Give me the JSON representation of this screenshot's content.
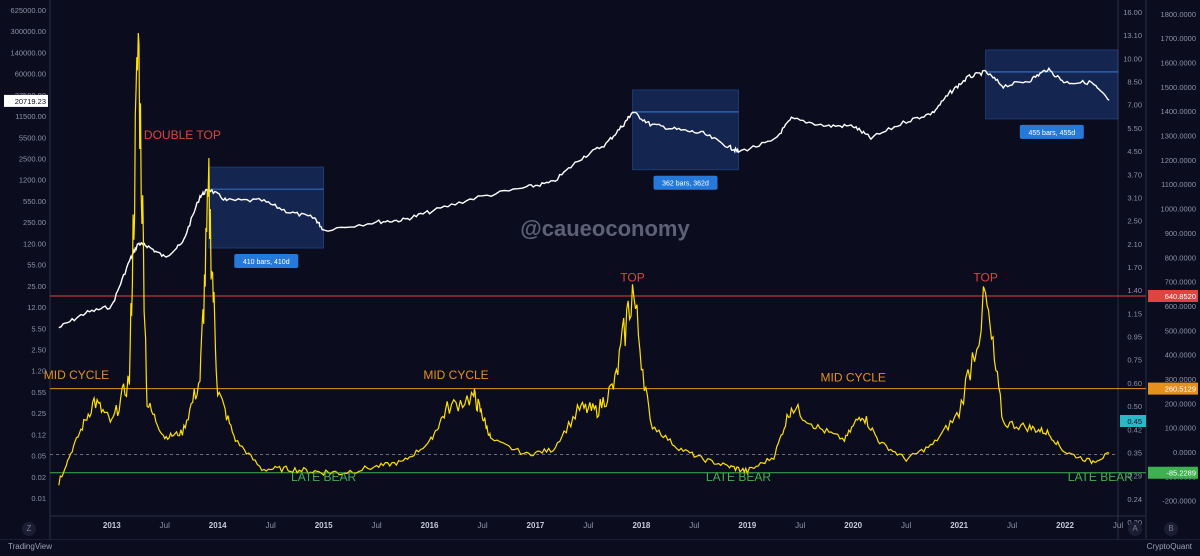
{
  "watermark": "@caueoconomy",
  "footer": {
    "left_brand": "TradingView",
    "right_brand": "CryptoQuant"
  },
  "axis_buttons": {
    "bottom_left": "Z",
    "bottom_right_a": "A",
    "bottom_right_b": "B"
  },
  "colors": {
    "background": "#0b0d1f",
    "price_line": "#ffffff",
    "indicator_line": "#ffe100",
    "top_line": "#e0443a",
    "mid_line": "#e6901c",
    "bottom_line": "#3fb04f",
    "current_line": "#c8c8c8",
    "annotation_red": "#e0443a",
    "annotation_orange": "#e6901c",
    "annotation_green": "#46b04f",
    "range_box": "#1c3a78",
    "range_label": "#2679d9"
  },
  "chart_data": {
    "type": "line",
    "x_ticks": [
      "2013",
      "Jul",
      "2014",
      "Jul",
      "2015",
      "Jul",
      "2016",
      "Jul",
      "2017",
      "Jul",
      "2018",
      "Jul",
      "2019",
      "Jul",
      "2020",
      "Jul",
      "2021",
      "Jul",
      "2022",
      "Jul"
    ],
    "left_axis": {
      "scale": "log",
      "ticks": [
        "625000.00",
        "300000.00",
        "140000.00",
        "60000.00",
        "27500.00",
        "11500.00",
        "5500.00",
        "2500.00",
        "1200.00",
        "550.00",
        "250.00",
        "120.00",
        "55.00",
        "25.00",
        "12.00",
        "5.50",
        "2.50",
        "1.20",
        "0.55",
        "0.25",
        "0.12",
        "0.05",
        "0.02",
        "0.01"
      ],
      "current_label": "20719.23"
    },
    "middle_axis": {
      "scale": "log",
      "ticks": [
        "16.00",
        "13.10",
        "10.00",
        "8.50",
        "7.00",
        "5.50",
        "4.50",
        "3.70",
        "3.10",
        "2.50",
        "2.10",
        "1.70",
        "1.40",
        "1.15",
        "0.95",
        "0.75",
        "0.60",
        "0.50",
        "0.42",
        "0.35",
        "0.29",
        "0.24",
        "0.20"
      ],
      "current_label": "0.45"
    },
    "right_axis": {
      "scale": "linear",
      "ticks": [
        "1800.0000",
        "1700.0000",
        "1600.0000",
        "1500.0000",
        "1400.0000",
        "1300.0000",
        "1200.0000",
        "1100.0000",
        "1000.0000",
        "900.0000",
        "800.0000",
        "700.0000",
        "600.0000",
        "500.0000",
        "400.0000",
        "300.0000",
        "200.0000",
        "100.0000",
        "0.0000",
        "-100.0000",
        "-200.0000"
      ],
      "levels": [
        {
          "label": "640.8520",
          "value": 640.852,
          "color": "#e0443a"
        },
        {
          "label": "260.5129",
          "value": 260.5129,
          "color": "#e6901c"
        },
        {
          "label": "-85.2289",
          "value": -85.2289,
          "color": "#3fb04f"
        }
      ]
    },
    "series": [
      {
        "role": "price",
        "axis": "left",
        "points": [
          [
            "2012-07",
            6.5
          ],
          [
            "2012-10",
            11
          ],
          [
            "2013-01",
            14
          ],
          [
            "2013-03",
            70
          ],
          [
            "2013-04",
            130
          ],
          [
            "2013-05",
            120
          ],
          [
            "2013-07",
            80
          ],
          [
            "2013-09",
            130
          ],
          [
            "2013-11",
            700
          ],
          [
            "2013-12",
            900
          ],
          [
            "2014-02",
            600
          ],
          [
            "2014-06",
            600
          ],
          [
            "2014-09",
            400
          ],
          [
            "2014-12",
            320
          ],
          [
            "2015-01",
            210
          ],
          [
            "2015-07",
            280
          ],
          [
            "2015-10",
            300
          ],
          [
            "2016-01",
            400
          ],
          [
            "2016-06",
            650
          ],
          [
            "2016-12",
            960
          ],
          [
            "2017-03",
            1150
          ],
          [
            "2017-06",
            2600
          ],
          [
            "2017-09",
            4500
          ],
          [
            "2017-11",
            9000
          ],
          [
            "2017-12",
            14000
          ],
          [
            "2018-02",
            9000
          ],
          [
            "2018-05",
            7500
          ],
          [
            "2018-08",
            6500
          ],
          [
            "2018-11",
            4000
          ],
          [
            "2018-12",
            3400
          ],
          [
            "2019-04",
            5000
          ],
          [
            "2019-06",
            11000
          ],
          [
            "2019-10",
            8500
          ],
          [
            "2020-01",
            8500
          ],
          [
            "2020-03",
            5500
          ],
          [
            "2020-07",
            10000
          ],
          [
            "2020-10",
            13500
          ],
          [
            "2020-12",
            28000
          ],
          [
            "2021-02",
            48000
          ],
          [
            "2021-04",
            58000
          ],
          [
            "2021-06",
            35000
          ],
          [
            "2021-09",
            43000
          ],
          [
            "2021-11",
            64000
          ],
          [
            "2022-01",
            40000
          ],
          [
            "2022-04",
            40000
          ],
          [
            "2022-06",
            20719.23
          ]
        ]
      },
      {
        "role": "indicator",
        "axis": "right",
        "points": [
          [
            "2012-07",
            -120
          ],
          [
            "2012-09",
            50
          ],
          [
            "2012-11",
            210
          ],
          [
            "2013-01",
            120
          ],
          [
            "2013-03",
            300
          ],
          [
            "2013-04",
            1700
          ],
          [
            "2013-05",
            200
          ],
          [
            "2013-07",
            60
          ],
          [
            "2013-09",
            80
          ],
          [
            "2013-11",
            300
          ],
          [
            "2013-12",
            1050
          ],
          [
            "2014-01",
            250
          ],
          [
            "2014-03",
            50
          ],
          [
            "2014-06",
            -70
          ],
          [
            "2014-09",
            -70
          ],
          [
            "2014-12",
            -80
          ],
          [
            "2015-03",
            -85
          ],
          [
            "2015-07",
            -60
          ],
          [
            "2015-10",
            -40
          ],
          [
            "2016-01",
            40
          ],
          [
            "2016-03",
            180
          ],
          [
            "2016-06",
            230
          ],
          [
            "2016-07",
            150
          ],
          [
            "2016-08",
            50
          ],
          [
            "2016-12",
            -10
          ],
          [
            "2017-03",
            10
          ],
          [
            "2017-06",
            180
          ],
          [
            "2017-08",
            170
          ],
          [
            "2017-10",
            280
          ],
          [
            "2017-12",
            670
          ],
          [
            "2018-02",
            120
          ],
          [
            "2018-05",
            20
          ],
          [
            "2018-08",
            -30
          ],
          [
            "2018-11",
            -60
          ],
          [
            "2019-01",
            -80
          ],
          [
            "2019-04",
            -20
          ],
          [
            "2019-06",
            190
          ],
          [
            "2019-09",
            100
          ],
          [
            "2019-12",
            50
          ],
          [
            "2020-02",
            160
          ],
          [
            "2020-04",
            40
          ],
          [
            "2020-07",
            -30
          ],
          [
            "2020-10",
            30
          ],
          [
            "2021-01",
            160
          ],
          [
            "2021-04",
            620
          ],
          [
            "2021-06",
            120
          ],
          [
            "2021-09",
            100
          ],
          [
            "2021-11",
            80
          ],
          [
            "2022-01",
            0
          ],
          [
            "2022-04",
            -40
          ],
          [
            "2022-06",
            -10
          ]
        ]
      }
    ],
    "ranges": [
      {
        "start": "2013-12",
        "end": "2015-01",
        "label": "410 bars, 410d"
      },
      {
        "start": "2017-12",
        "end": "2018-12",
        "label": "362 bars, 362d"
      },
      {
        "start": "2021-04",
        "end": "2022-07",
        "label": "455 bars, 455d"
      }
    ],
    "annotations": [
      {
        "text": "DOUBLE TOP",
        "at": "2013-09",
        "value": 1200,
        "color": "red"
      },
      {
        "text": "MID CYCLE",
        "at": "2012-09",
        "value": 300,
        "color": "orange"
      },
      {
        "text": "LATE BEAR",
        "at": "2015-01",
        "value": -120,
        "color": "green"
      },
      {
        "text": "MID CYCLE",
        "at": "2016-04",
        "value": 300,
        "color": "orange"
      },
      {
        "text": "TOP",
        "at": "2017-12",
        "value": 700,
        "color": "red"
      },
      {
        "text": "LATE BEAR",
        "at": "2018-12",
        "value": -120,
        "color": "green"
      },
      {
        "text": "MID CYCLE",
        "at": "2020-01",
        "value": 290,
        "color": "orange"
      },
      {
        "text": "TOP",
        "at": "2021-04",
        "value": 700,
        "color": "red"
      },
      {
        "text": "LATE BEAR",
        "at": "2022-05",
        "value": -120,
        "color": "green"
      }
    ]
  }
}
